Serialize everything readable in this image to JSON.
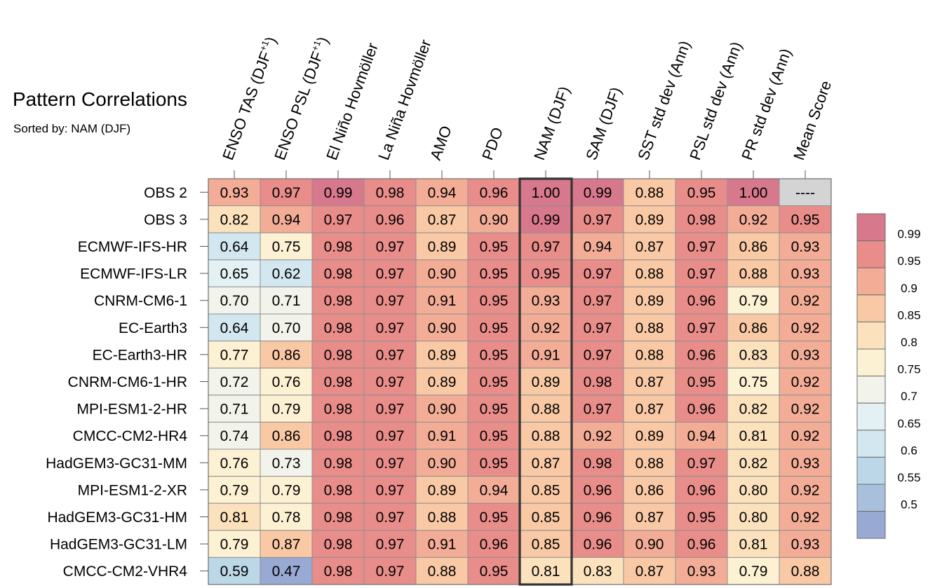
{
  "chart_data": {
    "type": "heatmap",
    "title": "Pattern Correlations",
    "subtitle": "Sorted by: NAM (DJF)",
    "columns": [
      {
        "label": "ENSO TAS (DJF",
        "sup": "+1",
        "close": ")"
      },
      {
        "label": "ENSO PSL (DJF",
        "sup": "+1",
        "close": ")"
      },
      {
        "label": "El Niño Hovmöller"
      },
      {
        "label": "La Niña Hovmöller"
      },
      {
        "label": "AMO"
      },
      {
        "label": "PDO"
      },
      {
        "label": "NAM (DJF)"
      },
      {
        "label": "SAM (DJF)"
      },
      {
        "label": "SST std dev (Ann)"
      },
      {
        "label": "PSL std dev (Ann)"
      },
      {
        "label": "PR std dev (Ann)"
      },
      {
        "label": "Mean Score"
      }
    ],
    "rows": [
      "OBS 2",
      "OBS 3",
      "ECMWF-IFS-HR",
      "ECMWF-IFS-LR",
      "CNRM-CM6-1",
      "EC-Earth3",
      "EC-Earth3-HR",
      "CNRM-CM6-1-HR",
      "MPI-ESM1-2-HR",
      "CMCC-CM2-HR4",
      "HadGEM3-GC31-MM",
      "MPI-ESM1-2-XR",
      "HadGEM3-GC31-HM",
      "HadGEM3-GC31-LM",
      "CMCC-CM2-VHR4"
    ],
    "values": [
      [
        "0.93",
        "0.97",
        "0.99",
        "0.98",
        "0.94",
        "0.96",
        "1.00",
        "0.99",
        "0.88",
        "0.95",
        "1.00",
        "----"
      ],
      [
        "0.82",
        "0.94",
        "0.97",
        "0.96",
        "0.87",
        "0.90",
        "0.99",
        "0.97",
        "0.89",
        "0.98",
        "0.92",
        "0.95"
      ],
      [
        "0.64",
        "0.75",
        "0.98",
        "0.97",
        "0.89",
        "0.95",
        "0.97",
        "0.94",
        "0.87",
        "0.97",
        "0.86",
        "0.93"
      ],
      [
        "0.65",
        "0.62",
        "0.98",
        "0.97",
        "0.90",
        "0.95",
        "0.95",
        "0.97",
        "0.88",
        "0.97",
        "0.88",
        "0.93"
      ],
      [
        "0.70",
        "0.71",
        "0.98",
        "0.97",
        "0.91",
        "0.95",
        "0.93",
        "0.97",
        "0.89",
        "0.96",
        "0.79",
        "0.92"
      ],
      [
        "0.64",
        "0.70",
        "0.98",
        "0.97",
        "0.90",
        "0.95",
        "0.92",
        "0.97",
        "0.88",
        "0.97",
        "0.86",
        "0.92"
      ],
      [
        "0.77",
        "0.86",
        "0.98",
        "0.97",
        "0.89",
        "0.95",
        "0.91",
        "0.97",
        "0.88",
        "0.96",
        "0.83",
        "0.93"
      ],
      [
        "0.72",
        "0.76",
        "0.98",
        "0.97",
        "0.89",
        "0.95",
        "0.89",
        "0.98",
        "0.87",
        "0.95",
        "0.75",
        "0.92"
      ],
      [
        "0.71",
        "0.79",
        "0.98",
        "0.97",
        "0.90",
        "0.95",
        "0.88",
        "0.97",
        "0.87",
        "0.96",
        "0.82",
        "0.92"
      ],
      [
        "0.74",
        "0.86",
        "0.98",
        "0.97",
        "0.91",
        "0.95",
        "0.88",
        "0.92",
        "0.89",
        "0.94",
        "0.81",
        "0.92"
      ],
      [
        "0.76",
        "0.73",
        "0.98",
        "0.97",
        "0.90",
        "0.95",
        "0.87",
        "0.98",
        "0.88",
        "0.97",
        "0.82",
        "0.93"
      ],
      [
        "0.79",
        "0.79",
        "0.98",
        "0.97",
        "0.89",
        "0.94",
        "0.85",
        "0.96",
        "0.86",
        "0.96",
        "0.80",
        "0.92"
      ],
      [
        "0.81",
        "0.78",
        "0.98",
        "0.97",
        "0.88",
        "0.95",
        "0.85",
        "0.96",
        "0.87",
        "0.95",
        "0.80",
        "0.92"
      ],
      [
        "0.79",
        "0.87",
        "0.98",
        "0.97",
        "0.91",
        "0.96",
        "0.85",
        "0.96",
        "0.90",
        "0.96",
        "0.81",
        "0.93"
      ],
      [
        "0.59",
        "0.47",
        "0.98",
        "0.97",
        "0.88",
        "0.95",
        "0.81",
        "0.83",
        "0.87",
        "0.93",
        "0.79",
        "0.88"
      ]
    ],
    "highlighted_column": "NAM (DJF)",
    "missing_value": "----",
    "missing_color": "#d4d4d4",
    "colorbar": {
      "bounds": [
        0.5,
        0.55,
        0.6,
        0.65,
        0.7,
        0.75,
        0.8,
        0.85,
        0.9,
        0.95,
        0.99
      ],
      "tick_labels": [
        "0.99",
        "0.95",
        "0.9",
        "0.85",
        "0.8",
        "0.75",
        "0.7",
        "0.65",
        "0.6",
        "0.55",
        "0.5"
      ],
      "colors": [
        "#98a9d3",
        "#a8c0dc",
        "#bcd7e7",
        "#d2e7f0",
        "#e4f1f4",
        "#f2f3ea",
        "#fdf1d3",
        "#fbe2bd",
        "#f9c9a5",
        "#f3ad97",
        "#e98d8a",
        "#d8788d"
      ]
    }
  }
}
